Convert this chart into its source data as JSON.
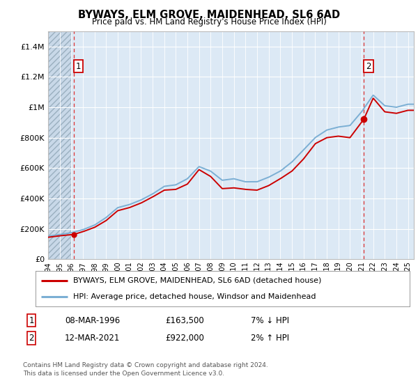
{
  "title": "BYWAYS, ELM GROVE, MAIDENHEAD, SL6 6AD",
  "subtitle": "Price paid vs. HM Land Registry's House Price Index (HPI)",
  "legend_line1": "BYWAYS, ELM GROVE, MAIDENHEAD, SL6 6AD (detached house)",
  "legend_line2": "HPI: Average price, detached house, Windsor and Maidenhead",
  "annotation1_label": "1",
  "annotation1_date": "08-MAR-1996",
  "annotation1_price": "£163,500",
  "annotation1_hpi": "7% ↓ HPI",
  "annotation2_label": "2",
  "annotation2_date": "12-MAR-2021",
  "annotation2_price": "£922,000",
  "annotation2_hpi": "2% ↑ HPI",
  "footer": "Contains HM Land Registry data © Crown copyright and database right 2024.\nThis data is licensed under the Open Government Licence v3.0.",
  "sale1_year": 1996.2,
  "sale1_price": 163500,
  "sale2_year": 2021.2,
  "sale2_price": 922000,
  "hpi_color": "#7bafd4",
  "price_color": "#cc0000",
  "plot_bg_color": "#dce9f5",
  "hatch_bg_color": "#c8d8e8",
  "ylim_max": 1500000,
  "yticks": [
    0,
    200000,
    400000,
    600000,
    800000,
    1000000,
    1200000,
    1400000
  ],
  "ytick_labels": [
    "£0",
    "£200K",
    "£400K",
    "£600K",
    "£800K",
    "£1M",
    "£1.2M",
    "£1.4M"
  ],
  "xstart": 1994,
  "xend": 2025.5
}
